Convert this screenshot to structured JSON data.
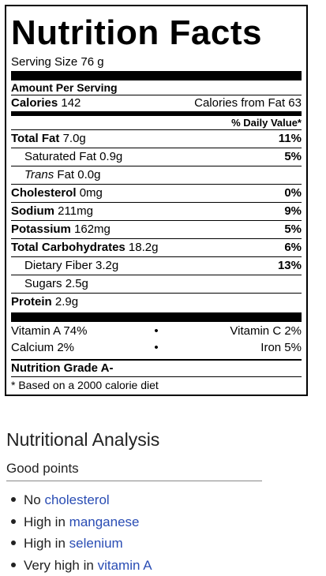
{
  "label": {
    "title": "Nutrition Facts",
    "serving_size": "Serving Size 76 g",
    "amount_per_serving": "Amount Per Serving",
    "calories_label": "Calories",
    "calories_value": "142",
    "calories_from_fat": "Calories from Fat 63",
    "daily_value_header": "% Daily Value*",
    "nutrients": [
      {
        "name": "Total Fat",
        "amount": "7.0g",
        "pct": "11%"
      },
      {
        "name": "Saturated Fat",
        "amount": "0.9g",
        "pct": "5%"
      },
      {
        "name_italic": "Trans",
        "name": "Fat",
        "amount": "0.0g",
        "pct": ""
      },
      {
        "name": "Cholesterol",
        "amount": "0mg",
        "pct": "0%"
      },
      {
        "name": "Sodium",
        "amount": "211mg",
        "pct": "9%"
      },
      {
        "name": "Potassium",
        "amount": "162mg",
        "pct": "5%"
      },
      {
        "name": "Total Carbohydrates",
        "amount": "18.2g",
        "pct": "6%"
      },
      {
        "name": "Dietary Fiber",
        "amount": "3.2g",
        "pct": "13%"
      },
      {
        "name": "Sugars",
        "amount": "2.5g",
        "pct": ""
      },
      {
        "name": "Protein",
        "amount": "2.9g",
        "pct": ""
      }
    ],
    "vitamins": [
      {
        "left": "Vitamin A 74%",
        "sep": "•",
        "right": "Vitamin C 2%"
      },
      {
        "left": "Calcium 2%",
        "sep": "•",
        "right": "Iron 5%"
      }
    ],
    "grade": "Nutrition Grade A-",
    "footnote": "* Based on a 2000 calorie diet"
  },
  "analysis": {
    "title": "Nutritional Analysis",
    "subtitle": "Good points",
    "points": [
      {
        "prefix": "No",
        "link": "cholesterol"
      },
      {
        "prefix": "High in",
        "link": "manganese"
      },
      {
        "prefix": "High in",
        "link": "selenium"
      },
      {
        "prefix": "Very high in",
        "link": "vitamin A"
      }
    ],
    "link_color": "#2a4db4"
  }
}
